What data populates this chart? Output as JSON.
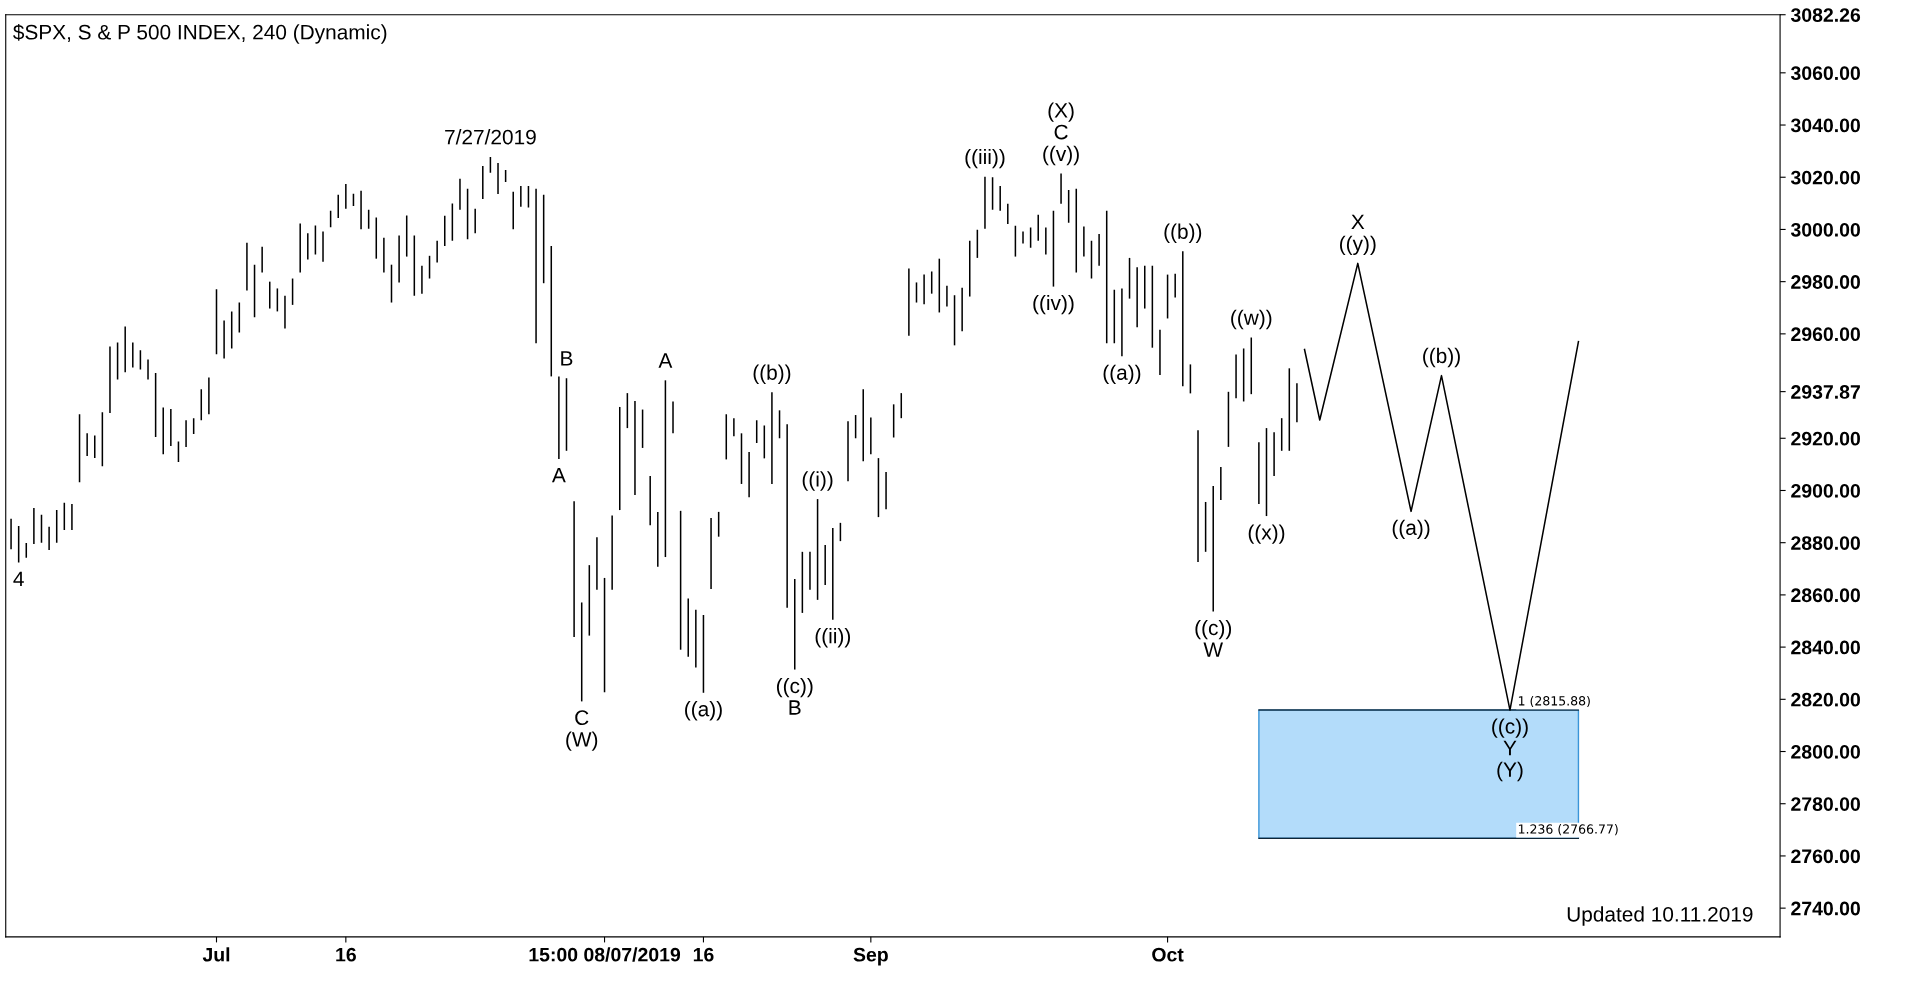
{
  "chart_data": {
    "type": "bar",
    "title": "$SPX, S & P 500 INDEX, 240 (Dynamic)",
    "categories": [
      null,
      null,
      null,
      null,
      null,
      null,
      null,
      null,
      null,
      null,
      null,
      null,
      null,
      null,
      null,
      null,
      null,
      null,
      null,
      null,
      null,
      null,
      null,
      null,
      null,
      null,
      null,
      "Jul",
      null,
      null,
      null,
      null,
      null,
      null,
      null,
      null,
      null,
      null,
      null,
      null,
      null,
      null,
      null,
      null,
      "16",
      null,
      null,
      null,
      null,
      null,
      null,
      null,
      null,
      null,
      null,
      null,
      null,
      null,
      null,
      null,
      null,
      null,
      null,
      null,
      null,
      null,
      null,
      null,
      null,
      null,
      null,
      null,
      null,
      null,
      null,
      null,
      null,
      null,
      "15:00 08/07/2019",
      null,
      null,
      null,
      null,
      null,
      null,
      null,
      null,
      null,
      null,
      null,
      null,
      "16",
      null,
      null,
      null,
      null,
      null,
      null,
      null,
      null,
      null,
      null,
      null,
      null,
      null,
      null,
      null,
      null,
      null,
      null,
      null,
      null,
      null,
      "Sep",
      null,
      null,
      null,
      null,
      null,
      null,
      null,
      null,
      null,
      null,
      null,
      null,
      null,
      null,
      null,
      null,
      null,
      null,
      null,
      null,
      null,
      null,
      null,
      null,
      null,
      null,
      null,
      null,
      null,
      null,
      null,
      null,
      null,
      null,
      null,
      null,
      null,
      null,
      "Oct",
      null,
      null,
      null,
      null,
      null,
      null,
      null,
      null,
      null,
      null,
      null,
      null,
      null,
      null,
      null,
      null,
      null,
      null,
      null,
      null,
      null,
      null,
      null,
      null,
      null,
      null,
      null,
      null,
      null,
      null,
      null,
      null,
      null,
      null,
      null,
      null,
      null,
      null,
      null,
      null,
      null,
      null,
      null,
      null,
      null,
      null,
      null,
      null,
      null,
      null,
      null,
      null,
      null,
      null,
      null,
      null,
      null,
      null,
      null,
      null,
      null,
      null,
      null,
      null,
      null,
      null,
      null,
      null,
      null,
      null,
      null,
      null,
      null,
      null,
      null,
      null,
      null,
      null,
      null,
      null
    ],
    "series": [
      {
        "color": "#000000",
        "base": [
          2877.5,
          2872.4,
          2874.2,
          2879.5,
          2880.0,
          2877.2,
          2880.0,
          2884.9,
          2884.9,
          2903.2,
          2913.2,
          2912.4,
          2909.3,
          2929.7,
          2942.5,
          2945.3,
          2947.1,
          2946.3,
          2942.5,
          2920.5,
          2913.9,
          2917.0,
          2910.9,
          2916.7,
          2921.6,
          2926.9,
          2929.2,
          2952.2,
          2950.6,
          2954.4,
          2960.5,
          2976.6,
          2966.4,
          2983.5,
          2969.7,
          2968.6,
          2962.1,
          2971.1,
          2983.5,
          2988.5,
          2990.4,
          2987.6,
          3000.8,
          3004.4,
          3007.9,
          3009.0,
          3000.1,
          3000.3,
          2988.8,
          2983.5,
          2972.0,
          2979.7,
          2989.6,
          2974.6,
          2975.4,
          2981.2,
          2987.3,
          2993.7,
          2995.7,
          3007.5,
          2996.2,
          2998.5,
          3011.7,
          3021.7,
          3013.6,
          3018.2,
          3000.1,
          3008.7,
          3008.4,
          2956.4,
          2979.4,
          2943.7,
          2912.1,
          2915.2,
          2843.9,
          2819.2,
          2844.4,
          2862.0,
          2822.7,
          2862.0,
          2892.5,
          2923.9,
          2898.3,
          2916.3,
          2886.7,
          2870.8,
          2874.5,
          2921.9,
          2839.0,
          2836.3,
          2832.2,
          2822.5,
          2862.3,
          2882.3,
          2911.9,
          2920.8,
          2902.5,
          2897.4,
          2918.2,
          2912.3,
          2902.5,
          2920.0,
          2855.1,
          2831.4,
          2853.1,
          2862.0,
          2858.1,
          2863.8,
          2850.5,
          2880.6,
          2903.5,
          2920.0,
          2911.2,
          2913.9,
          2889.8,
          2892.8,
          2920.3,
          2927.7,
          2959.3,
          2972.0,
          2971.3,
          2975.4,
          2968.2,
          2970.5,
          2955.6,
          2961.0,
          2974.3,
          2989.1,
          3000.3,
          3007.5,
          3007.2,
          3002.1,
          2989.6,
          2994.6,
          2993.0,
          2995.7,
          2990.4,
          2978.1,
          3009.8,
          3002.6,
          2983.5,
          2989.6,
          2981.2,
          2986.1,
          2956.4,
          2956.4,
          2951.4,
          2973.5,
          2962.5,
          2969.7,
          2954.7,
          2944.2,
          2965.9,
          2973.9,
          2939.9,
          2937.2,
          2872.6,
          2876.5,
          2853.6,
          2896.4,
          2916.7,
          2935.3,
          2934.1,
          2936.9,
          2894.8,
          2890.2,
          2905.5,
          2915.2,
          2915.2,
          2926.1,
          null,
          null,
          null,
          null,
          null,
          null,
          null,
          null,
          null,
          null,
          null,
          null,
          null,
          null,
          null,
          null,
          null,
          null,
          null,
          null,
          null,
          null,
          null,
          null,
          null,
          null,
          null,
          null,
          null,
          null,
          null,
          null,
          null,
          null,
          null,
          null,
          null,
          null,
          null,
          null,
          null,
          null,
          null,
          null,
          null,
          null,
          null,
          null,
          null,
          null,
          null,
          null,
          null,
          null,
          null,
          null,
          null,
          null,
          null,
          null,
          null,
          null,
          null
        ],
        "values": [
          11.7,
          14.0,
          5.7,
          13.8,
          10.7,
          8.9,
          12.5,
          10.4,
          9.9,
          26.0,
          8.7,
          8.7,
          20.7,
          25.5,
          14.2,
          17.5,
          9.6,
          7.4,
          7.7,
          24.5,
          17.9,
          14.2,
          7.9,
          10.2,
          6.1,
          11.9,
          14.1,
          24.9,
          14.5,
          14.2,
          11.5,
          18.3,
          20.1,
          9.9,
          10.3,
          8.8,
          12.5,
          10.1,
          18.8,
          10.0,
          11.1,
          11.6,
          6.4,
          8.9,
          9.5,
          4.7,
          14.7,
          7.2,
          15.8,
          13.3,
          14.5,
          18.0,
          15.7,
          23.1,
          10.7,
          8.7,
          8.4,
          11.5,
          14.2,
          11.9,
          19.4,
          9.4,
          12.6,
          6.1,
          11.9,
          4.6,
          14.3,
          7.9,
          8.2,
          59.2,
          33.9,
          50.0,
          31.6,
          27.8,
          52.0,
          37.9,
          27.0,
          20.1,
          43.8,
          28.4,
          39.5,
          13.4,
          36.0,
          14.7,
          18.8,
          21.0,
          67.7,
          12.2,
          53.2,
          22.3,
          22.1,
          29.8,
          27.2,
          9.5,
          17.3,
          6.9,
          19.4,
          17.3,
          8.7,
          12.6,
          35.1,
          10.7,
          70.3,
          34.7,
          23.4,
          14.5,
          38.6,
          15.3,
          35.1,
          7.0,
          23.0,
          8.9,
          27.6,
          14.1,
          22.6,
          14.3,
          12.7,
          9.6,
          25.7,
          7.7,
          11.4,
          8.5,
          20.6,
          7.9,
          19.2,
          16.7,
          21.4,
          10.8,
          19.9,
          12.5,
          9.4,
          7.7,
          11.8,
          4.6,
          7.7,
          9.9,
          10.3,
          29.1,
          11.6,
          12.5,
          32.1,
          11.5,
          14.5,
          12.2,
          50.8,
          20.5,
          26.0,
          15.6,
          23.0,
          16.4,
          31.4,
          17.4,
          16.8,
          9.1,
          51.7,
          11.1,
          50.5,
          19.1,
          48.1,
          12.6,
          21.1,
          16.8,
          20.3,
          21.7,
          23.7,
          33.7,
          16.8,
          12.5,
          31.6,
          15.0,
          null,
          null,
          null,
          null,
          null,
          null,
          null,
          null,
          null,
          null,
          null,
          null,
          null,
          null,
          null,
          null,
          null,
          null,
          null,
          null,
          null,
          null,
          null,
          null,
          null,
          null,
          null,
          null,
          null,
          null,
          null,
          null,
          null,
          null,
          null,
          null,
          null,
          null,
          null,
          null,
          null,
          null,
          null,
          null,
          null,
          null,
          null,
          null,
          null,
          null,
          null,
          null,
          null,
          null,
          null,
          null,
          null,
          null,
          null,
          null,
          null,
          null,
          null
        ]
      },
      {
        "type": "line",
        "color": "#000000",
        "values": [
          null,
          null,
          null,
          null,
          null,
          null,
          null,
          null,
          null,
          null,
          null,
          null,
          null,
          null,
          null,
          null,
          null,
          null,
          null,
          null,
          null,
          null,
          null,
          null,
          null,
          null,
          null,
          null,
          null,
          null,
          null,
          null,
          null,
          null,
          null,
          null,
          null,
          null,
          null,
          null,
          null,
          null,
          null,
          null,
          null,
          null,
          null,
          null,
          null,
          null,
          null,
          null,
          null,
          null,
          null,
          null,
          null,
          null,
          null,
          null,
          null,
          null,
          null,
          null,
          null,
          null,
          null,
          null,
          null,
          null,
          null,
          null,
          null,
          null,
          null,
          null,
          null,
          null,
          null,
          null,
          null,
          null,
          null,
          null,
          null,
          null,
          null,
          null,
          null,
          null,
          null,
          null,
          null,
          null,
          null,
          null,
          null,
          null,
          null,
          null,
          null,
          null,
          null,
          null,
          null,
          null,
          null,
          null,
          null,
          null,
          null,
          null,
          null,
          null,
          null,
          null,
          null,
          null,
          null,
          null,
          null,
          null,
          null,
          null,
          null,
          null,
          null,
          null,
          null,
          null,
          null,
          null,
          null,
          null,
          null,
          null,
          null,
          null,
          null,
          null,
          null,
          null,
          null,
          null,
          null,
          null,
          null,
          null,
          null,
          null,
          null,
          null,
          null,
          null,
          null,
          null,
          null,
          null,
          null,
          null,
          null,
          null,
          null,
          null,
          null,
          null,
          null,
          null,
          null,
          null,
          2954,
          null,
          2927,
          null,
          null,
          null,
          null,
          2987,
          null,
          null,
          null,
          null,
          null,
          null,
          2892,
          null,
          null,
          null,
          2944,
          null,
          null,
          null,
          null,
          null,
          null,
          null,
          null,
          2815.88,
          null,
          null,
          null,
          null,
          null,
          null,
          null,
          null,
          2957,
          null,
          null,
          null,
          null,
          null,
          null,
          null,
          null,
          null,
          null,
          null,
          null,
          null,
          null,
          null,
          null,
          null,
          null,
          null,
          null,
          null,
          null,
          null,
          null,
          null,
          null
        ]
      }
    ],
    "ylim": [
      2729,
      3082.26
    ],
    "yticks": [
      {
        "value": 2740,
        "label": "2740.00"
      },
      {
        "value": 2760,
        "label": "2760.00"
      },
      {
        "value": 2780,
        "label": "2780.00"
      },
      {
        "value": 2800,
        "label": "2800.00"
      },
      {
        "value": 2820,
        "label": "2820.00"
      },
      {
        "value": 2840,
        "label": "2840.00"
      },
      {
        "value": 2860,
        "label": "2860.00"
      },
      {
        "value": 2880,
        "label": "2880.00"
      },
      {
        "value": 2900,
        "label": "2900.00"
      },
      {
        "value": 2920,
        "label": "2920.00"
      },
      {
        "value": 2937.87,
        "label": "2937.87"
      },
      {
        "value": 2960,
        "label": "2960.00"
      },
      {
        "value": 2980,
        "label": "2980.00"
      },
      {
        "value": 3000,
        "label": "3000.00"
      },
      {
        "value": 3020,
        "label": "3020.00"
      },
      {
        "value": 3040,
        "label": "3040.00"
      },
      {
        "value": 3060,
        "label": "3060.00"
      },
      {
        "value": 3082.26,
        "label": "3082.26"
      }
    ],
    "grid": false,
    "legend": false,
    "bands": [
      {
        "axis": "y",
        "from": 2766.77,
        "to": 2815.88,
        "color": "#b3dcfa"
      }
    ],
    "ref_lines": [
      {
        "axis": "y",
        "value": 2815.88,
        "label": "1 (2815.88)",
        "color": "#000000"
      },
      {
        "axis": "y",
        "value": 2766.77,
        "label": "1.236 (2766.77)",
        "color": "#000000"
      }
    ],
    "annotations": [
      {
        "text": "4",
        "y": 2872.4
      },
      {
        "text": "7/27/2019",
        "y": 3027.8
      },
      {
        "text": "A",
        "y": 2912.1
      },
      {
        "text": "B",
        "y": 2943.0
      },
      {
        "text": "C\n(W)",
        "y": 2819.2
      },
      {
        "text": "A",
        "y": 2942.2
      },
      {
        "text": "((a))",
        "y": 2822.5
      },
      {
        "text": "((b))",
        "y": 2937.6
      },
      {
        "text": "((c))\nB",
        "y": 2831.4
      },
      {
        "text": "((i))",
        "y": 2896.7
      },
      {
        "text": "((ii))",
        "y": 2850.5
      },
      {
        "text": "((iii))",
        "y": 3020.2
      },
      {
        "text": "((iv))",
        "y": 2978.1
      },
      {
        "text": "(X)\nC\n((v))",
        "y": 3021.4
      },
      {
        "text": "((a))",
        "y": 2951.4
      },
      {
        "text": "((b))",
        "y": 2991.6
      },
      {
        "text": "((c))\nW",
        "y": 2853.6
      },
      {
        "text": "((w))",
        "y": 2958.6
      },
      {
        "text": "((x))",
        "y": 2890.2
      },
      {
        "text": "X\n((y))",
        "y": 2987
      },
      {
        "text": "((a))",
        "y": 2892
      },
      {
        "text": "((b))",
        "y": 2944
      },
      {
        "text": "((c))\nY\n(Y)",
        "y": 2815.88
      },
      "Updated 10.11.2019"
    ]
  }
}
